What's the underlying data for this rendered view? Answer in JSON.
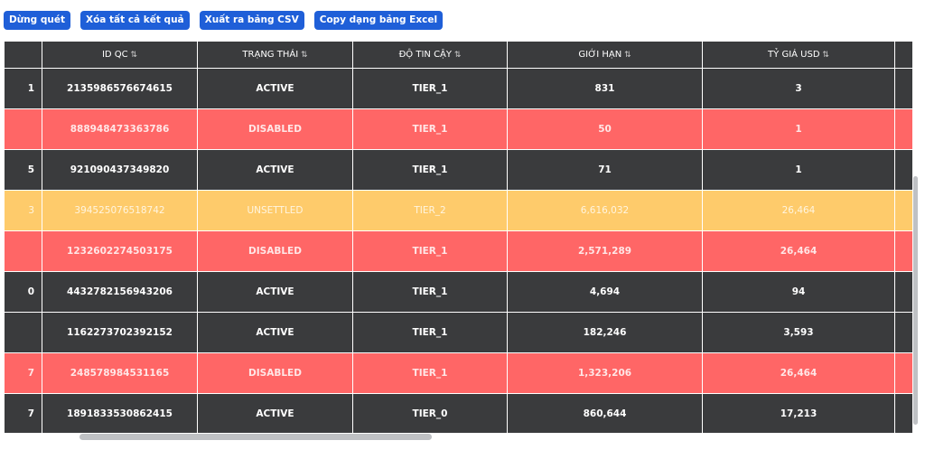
{
  "toolbar": {
    "buttons": [
      "Dừng quét",
      "Xóa tất cả kết quả",
      "Xuất ra bảng CSV",
      "Copy dạng bảng Excel"
    ]
  },
  "table": {
    "columns": [
      null,
      "ID QC",
      "TRẠNG THÁI",
      "ĐỘ TIN CẬY",
      "GIỚI HẠN",
      "TỶ GIÁ USD",
      null
    ],
    "rows": [
      [
        "1",
        "2135986576674615",
        "ACTIVE",
        "TIER_1",
        "831",
        "3",
        null
      ],
      [
        null,
        "888948473363786",
        "DISABLED",
        "TIER_1",
        "50",
        "1",
        null
      ],
      [
        "5",
        "921090437349820",
        "ACTIVE",
        "TIER_1",
        "71",
        "1",
        null
      ],
      [
        "3",
        "394525076518742",
        "UNSETTLED",
        "TIER_2",
        "6,616,032",
        "26,464",
        null
      ],
      [
        null,
        "1232602274503175",
        "DISABLED",
        "TIER_1",
        "2,571,289",
        "26,464",
        null
      ],
      [
        "0",
        "4432782156943206",
        "ACTIVE",
        "TIER_1",
        "4,694",
        "94",
        null
      ],
      [
        null,
        "1162273702392152",
        "ACTIVE",
        "TIER_1",
        "182,246",
        "3,593",
        null
      ],
      [
        "7",
        "248578984531165",
        "DISABLED",
        "TIER_1",
        "1,323,206",
        "26,464",
        null
      ],
      [
        "7",
        "1891833530862415",
        "ACTIVE",
        "TIER_0",
        "860,644",
        "17,213",
        null
      ]
    ]
  }
}
